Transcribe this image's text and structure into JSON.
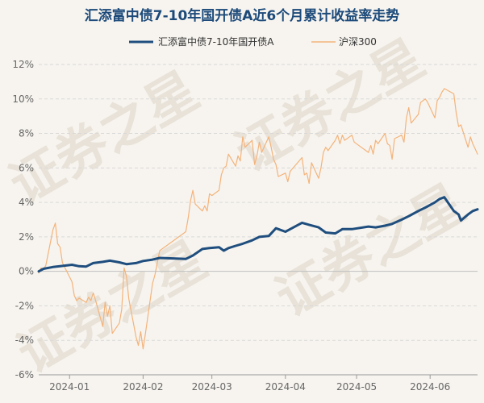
{
  "chart_data": {
    "type": "line",
    "title": "汇添富中债7-10年国开债A近6个月累计收益率走势",
    "xlabel": "",
    "ylabel": "",
    "x_tick_labels": [
      "2024-01",
      "2024-02",
      "2024-03",
      "2024-04",
      "2024-05",
      "2024-06"
    ],
    "x_tick_dates": [
      "2024-01-01",
      "2024-02-01",
      "2024-03-01",
      "2024-04-01",
      "2024-05-01",
      "2024-06-01"
    ],
    "x_range": [
      "2023-12-19",
      "2024-06-21"
    ],
    "ylim": [
      -6,
      12
    ],
    "y_ticks": [
      -6,
      -4,
      -2,
      0,
      2,
      4,
      6,
      8,
      10,
      12
    ],
    "y_tick_format": "percent",
    "grid": true,
    "legend_position": "top-center",
    "watermark": "证券之星",
    "series": [
      {
        "name": "汇添富中债7-10年国开债A",
        "color": "#1f4e7e",
        "line_width": 3,
        "points": [
          [
            "2023-12-19",
            0.0
          ],
          [
            "2023-12-21",
            0.15
          ],
          [
            "2023-12-25",
            0.25
          ],
          [
            "2023-12-28",
            0.3
          ],
          [
            "2024-01-02",
            0.38
          ],
          [
            "2024-01-05",
            0.3
          ],
          [
            "2024-01-08",
            0.28
          ],
          [
            "2024-01-11",
            0.48
          ],
          [
            "2024-01-15",
            0.55
          ],
          [
            "2024-01-18",
            0.62
          ],
          [
            "2024-01-22",
            0.52
          ],
          [
            "2024-01-25",
            0.42
          ],
          [
            "2024-01-29",
            0.48
          ],
          [
            "2024-02-01",
            0.6
          ],
          [
            "2024-02-05",
            0.68
          ],
          [
            "2024-02-08",
            0.78
          ],
          [
            "2024-02-19",
            0.72
          ],
          [
            "2024-02-22",
            0.92
          ],
          [
            "2024-02-26",
            1.3
          ],
          [
            "2024-02-29",
            1.35
          ],
          [
            "2024-03-04",
            1.4
          ],
          [
            "2024-03-06",
            1.2
          ],
          [
            "2024-03-08",
            1.35
          ],
          [
            "2024-03-11",
            1.48
          ],
          [
            "2024-03-14",
            1.6
          ],
          [
            "2024-03-18",
            1.8
          ],
          [
            "2024-03-21",
            2.0
          ],
          [
            "2024-03-25",
            2.05
          ],
          [
            "2024-03-28",
            2.5
          ],
          [
            "2024-04-01",
            2.3
          ],
          [
            "2024-04-03",
            2.45
          ],
          [
            "2024-04-08",
            2.82
          ],
          [
            "2024-04-11",
            2.7
          ],
          [
            "2024-04-15",
            2.55
          ],
          [
            "2024-04-18",
            2.25
          ],
          [
            "2024-04-22",
            2.2
          ],
          [
            "2024-04-25",
            2.45
          ],
          [
            "2024-04-29",
            2.45
          ],
          [
            "2024-05-06",
            2.6
          ],
          [
            "2024-05-09",
            2.55
          ],
          [
            "2024-05-13",
            2.65
          ],
          [
            "2024-05-16",
            2.75
          ],
          [
            "2024-05-20",
            3.0
          ],
          [
            "2024-05-23",
            3.2
          ],
          [
            "2024-05-27",
            3.5
          ],
          [
            "2024-05-30",
            3.7
          ],
          [
            "2024-06-03",
            4.0
          ],
          [
            "2024-06-05",
            4.2
          ],
          [
            "2024-06-07",
            4.3
          ],
          [
            "2024-06-11",
            3.5
          ],
          [
            "2024-06-13",
            3.3
          ],
          [
            "2024-06-14",
            2.95
          ],
          [
            "2024-06-17",
            3.3
          ],
          [
            "2024-06-19",
            3.5
          ],
          [
            "2024-06-21",
            3.6
          ]
        ]
      },
      {
        "name": "沪深300",
        "color": "#f4b37a",
        "line_width": 1.2,
        "points": [
          [
            "2023-12-19",
            -0.1
          ],
          [
            "2023-12-20",
            0.2
          ],
          [
            "2023-12-21",
            0.1
          ],
          [
            "2023-12-22",
            0.35
          ],
          [
            "2023-12-25",
            2.4
          ],
          [
            "2023-12-26",
            2.8
          ],
          [
            "2023-12-27",
            1.6
          ],
          [
            "2023-12-28",
            1.4
          ],
          [
            "2023-12-29",
            0.5
          ],
          [
            "2024-01-02",
            -0.6
          ],
          [
            "2024-01-03",
            -1.4
          ],
          [
            "2024-01-04",
            -1.7
          ],
          [
            "2024-01-05",
            -1.55
          ],
          [
            "2024-01-08",
            -1.8
          ],
          [
            "2024-01-09",
            -1.5
          ],
          [
            "2024-01-10",
            -1.7
          ],
          [
            "2024-01-11",
            -1.25
          ],
          [
            "2024-01-12",
            -1.7
          ],
          [
            "2024-01-15",
            -3.2
          ],
          [
            "2024-01-16",
            -1.8
          ],
          [
            "2024-01-17",
            -2.6
          ],
          [
            "2024-01-18",
            -2.0
          ],
          [
            "2024-01-19",
            -3.6
          ],
          [
            "2024-01-22",
            -3.0
          ],
          [
            "2024-01-23",
            -2.2
          ],
          [
            "2024-01-24",
            0.2
          ],
          [
            "2024-01-25",
            -0.3
          ],
          [
            "2024-01-26",
            -1.6
          ],
          [
            "2024-01-29",
            -3.8
          ],
          [
            "2024-01-30",
            -4.3
          ],
          [
            "2024-01-31",
            -3.5
          ],
          [
            "2024-02-01",
            -4.5
          ],
          [
            "2024-02-02",
            -3.6
          ],
          [
            "2024-02-05",
            -0.7
          ],
          [
            "2024-02-06",
            -0.2
          ],
          [
            "2024-02-07",
            0.5
          ],
          [
            "2024-02-08",
            1.2
          ],
          [
            "2024-02-19",
            2.3
          ],
          [
            "2024-02-20",
            3.1
          ],
          [
            "2024-02-21",
            4.1
          ],
          [
            "2024-02-22",
            4.7
          ],
          [
            "2024-02-23",
            3.9
          ],
          [
            "2024-02-26",
            3.5
          ],
          [
            "2024-02-27",
            3.8
          ],
          [
            "2024-02-28",
            3.5
          ],
          [
            "2024-02-29",
            4.5
          ],
          [
            "2024-03-01",
            4.4
          ],
          [
            "2024-03-04",
            4.7
          ],
          [
            "2024-03-05",
            5.6
          ],
          [
            "2024-03-06",
            6.0
          ],
          [
            "2024-03-07",
            6.1
          ],
          [
            "2024-03-08",
            6.8
          ],
          [
            "2024-03-11",
            6.1
          ],
          [
            "2024-03-12",
            6.7
          ],
          [
            "2024-03-13",
            6.4
          ],
          [
            "2024-03-14",
            7.8
          ],
          [
            "2024-03-15",
            7.2
          ],
          [
            "2024-03-18",
            7.6
          ],
          [
            "2024-03-19",
            6.2
          ],
          [
            "2024-03-20",
            6.7
          ],
          [
            "2024-03-21",
            7.5
          ],
          [
            "2024-03-22",
            6.9
          ],
          [
            "2024-03-25",
            7.8
          ],
          [
            "2024-03-26",
            7.2
          ],
          [
            "2024-03-27",
            6.5
          ],
          [
            "2024-03-28",
            6.2
          ],
          [
            "2024-03-29",
            5.5
          ],
          [
            "2024-04-01",
            5.7
          ],
          [
            "2024-04-02",
            5.2
          ],
          [
            "2024-04-03",
            5.8
          ],
          [
            "2024-04-08",
            6.6
          ],
          [
            "2024-04-09",
            5.6
          ],
          [
            "2024-04-10",
            5.7
          ],
          [
            "2024-04-11",
            5.1
          ],
          [
            "2024-04-12",
            6.3
          ],
          [
            "2024-04-15",
            5.4
          ],
          [
            "2024-04-16",
            6.0
          ],
          [
            "2024-04-17",
            6.9
          ],
          [
            "2024-04-18",
            7.2
          ],
          [
            "2024-04-19",
            7.0
          ],
          [
            "2024-04-22",
            7.6
          ],
          [
            "2024-04-23",
            7.9
          ],
          [
            "2024-04-24",
            7.4
          ],
          [
            "2024-04-25",
            7.9
          ],
          [
            "2024-04-26",
            7.6
          ],
          [
            "2024-04-29",
            7.9
          ],
          [
            "2024-04-30",
            7.5
          ],
          [
            "2024-05-06",
            6.9
          ],
          [
            "2024-05-07",
            7.3
          ],
          [
            "2024-05-08",
            6.8
          ],
          [
            "2024-05-09",
            7.6
          ],
          [
            "2024-05-10",
            7.4
          ],
          [
            "2024-05-13",
            8.0
          ],
          [
            "2024-05-14",
            7.4
          ],
          [
            "2024-05-15",
            7.3
          ],
          [
            "2024-05-16",
            6.5
          ],
          [
            "2024-05-17",
            7.7
          ],
          [
            "2024-05-20",
            7.9
          ],
          [
            "2024-05-21",
            7.5
          ],
          [
            "2024-05-22",
            8.9
          ],
          [
            "2024-05-23",
            9.5
          ],
          [
            "2024-05-24",
            8.6
          ],
          [
            "2024-05-27",
            9.1
          ],
          [
            "2024-05-28",
            9.8
          ],
          [
            "2024-05-29",
            9.9
          ],
          [
            "2024-05-30",
            10.0
          ],
          [
            "2024-05-31",
            9.8
          ],
          [
            "2024-06-03",
            8.9
          ],
          [
            "2024-06-04",
            9.9
          ],
          [
            "2024-06-05",
            10.1
          ],
          [
            "2024-06-06",
            10.4
          ],
          [
            "2024-06-07",
            10.6
          ],
          [
            "2024-06-11",
            10.3
          ],
          [
            "2024-06-12",
            9.2
          ],
          [
            "2024-06-13",
            8.4
          ],
          [
            "2024-06-14",
            8.5
          ],
          [
            "2024-06-17",
            7.2
          ],
          [
            "2024-06-18",
            7.8
          ],
          [
            "2024-06-19",
            7.4
          ],
          [
            "2024-06-20",
            7.1
          ],
          [
            "2024-06-21",
            6.8
          ]
        ]
      }
    ]
  }
}
